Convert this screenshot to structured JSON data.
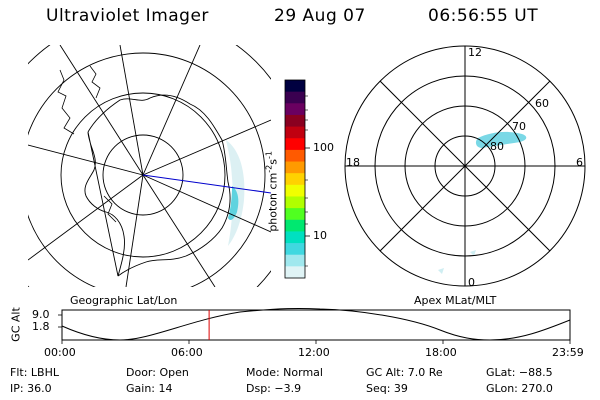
{
  "header": {
    "instrument": "Ultraviolet Imager",
    "date": "29 Aug 07",
    "time": "06:56:55 UT"
  },
  "colorbar": {
    "unit_label": "photon cm",
    "unit_exp1": "-2",
    "unit_mid": "s",
    "unit_exp2": "-1",
    "scale": "log",
    "ticks": [
      "100",
      "10"
    ],
    "colors": [
      "#000040",
      "#3a0050",
      "#6a0060",
      "#8a0020",
      "#c00010",
      "#ff0000",
      "#ff5a00",
      "#ff9a00",
      "#ffd200",
      "#f0ff00",
      "#b0ff00",
      "#50ff20",
      "#00e870",
      "#00e0c0",
      "#40d8e0",
      "#a0e8ee",
      "#e0f4f6"
    ]
  },
  "geo_panel": {
    "caption": "Geographic Lat/Lon"
  },
  "mlt_panel": {
    "caption": "Apex MLat/MLT",
    "hour_labels": {
      "top": "12",
      "left": "18",
      "right": "6",
      "bottom": "0"
    },
    "lat_labels": [
      "60",
      "70",
      "80"
    ]
  },
  "altitude_plot": {
    "ylabel": "GC Alt",
    "yticks": [
      "9.0",
      "1.8"
    ],
    "xticks": [
      "00:00",
      "06:00",
      "12:00",
      "18:00",
      "23:59"
    ],
    "current_time_hours": 6.95
  },
  "info": {
    "row1": {
      "filter": "Flt: LBHL",
      "door": "Door: Open",
      "mode": "Mode: Normal",
      "gc_alt": "GC Alt: 7.0 Re",
      "glat": "GLat: −88.5"
    },
    "row2": {
      "ip": "IP: 36.0",
      "gain": "Gain: 14",
      "dsp": "Dsp:   −3.9",
      "seq": "Seq: 39",
      "glon": "GLon: 270.0"
    }
  },
  "colors": {
    "meridian": "#0000cc",
    "marker": "#dd0000",
    "aurora": "#7ad8e6"
  }
}
